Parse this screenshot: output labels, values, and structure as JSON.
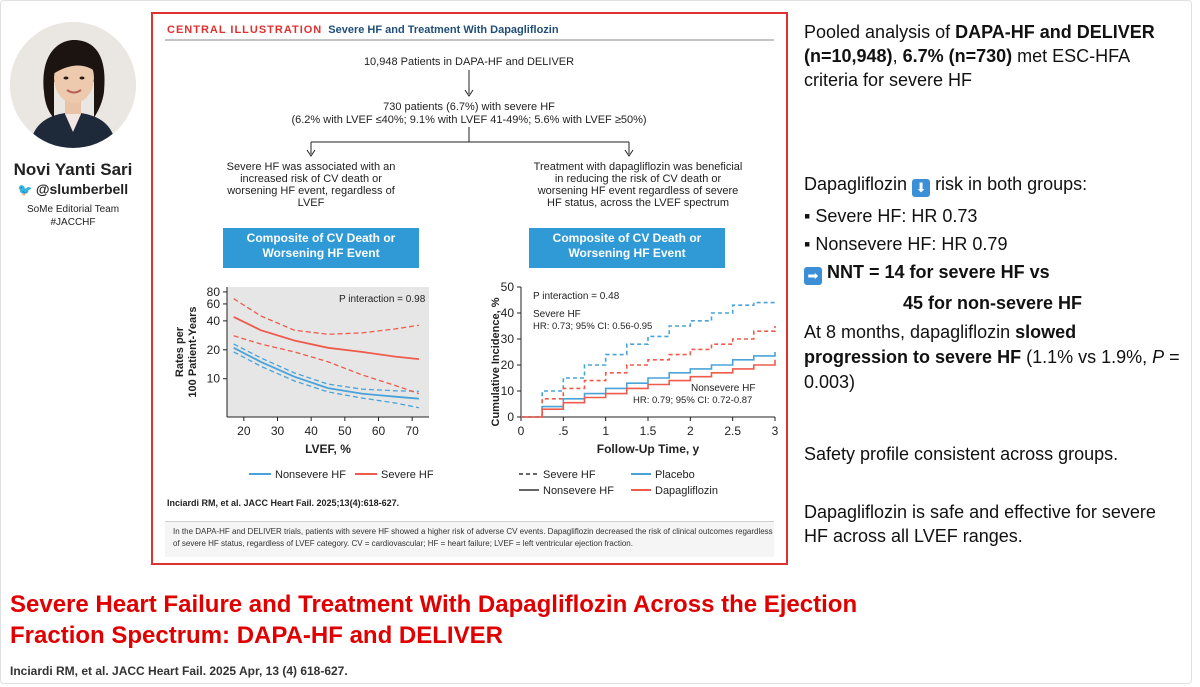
{
  "author": {
    "name": "Novi Yanti Sari",
    "handle": "@slumberbell",
    "team": "SoMe Editorial Team",
    "hashtag": "#JACCHF"
  },
  "illustration": {
    "label": "CENTRAL ILLUSTRATION",
    "title": "Severe HF and Treatment With Dapagliflozin",
    "flow": {
      "top": "10,948 Patients in DAPA-HF and DELIVER",
      "mid_line1": "730 patients (6.7%) with severe HF",
      "mid_line2": "(6.2% with LVEF ≤40%; 9.1% with LVEF 41-49%; 5.6% with LVEF ≥50%)",
      "left_text": "Severe HF was associated with an increased risk of CV death or worsening HF event, regardless of LVEF",
      "right_text": "Treatment with dapagliflozin was beneficial in reducing the risk of CV death or worsening HF event regardless of severe HF status, across the LVEF spectrum"
    },
    "citation": "Inciardi RM, et al. JACC Heart Fail. 2025;13(4):618-627.",
    "footnote": "In the DAPA-HF and DELIVER trials, patients with severe HF showed a higher risk of adverse CV events. Dapagliflozin decreased the risk of clinical outcomes regardless of severe HF status, regardless of LVEF category. CV = cardiovascular; HF = heart failure; LVEF = left ventricular ejection fraction."
  },
  "chart_data": [
    {
      "type": "line",
      "title": "Composite of CV Death or Worsening HF Event",
      "xlabel": "LVEF, %",
      "ylabel": "Rates per 100 Patient-Years",
      "xlim": [
        15,
        75
      ],
      "ylim": [
        4,
        90
      ],
      "yscale": "log",
      "xticks": [
        20,
        30,
        40,
        50,
        60,
        70
      ],
      "yticks": [
        10,
        20,
        40,
        60,
        80
      ],
      "annotation": "P interaction = 0.98",
      "annotation_sub": "interaction",
      "series": [
        {
          "name": "Nonsevere HF",
          "color": "#4aa3d8",
          "x": [
            17,
            25,
            35,
            45,
            55,
            65,
            72
          ],
          "y": [
            21,
            15,
            10.5,
            8,
            7,
            6.5,
            6.2
          ],
          "lower": [
            19,
            13.5,
            9.5,
            7.3,
            6.3,
            5.6,
            5.0
          ],
          "upper": [
            23,
            16.5,
            11.5,
            8.8,
            7.8,
            7.5,
            7.4
          ]
        },
        {
          "name": "Severe HF",
          "color": "#ef5b4a",
          "x": [
            17,
            25,
            35,
            45,
            55,
            65,
            72
          ],
          "y": [
            44,
            32,
            25,
            21,
            19,
            17,
            16
          ],
          "lower": [
            28,
            23,
            19,
            15,
            11,
            8.5,
            7
          ],
          "upper": [
            68,
            45,
            32,
            29,
            30,
            33,
            36
          ]
        }
      ],
      "legend": [
        "Nonsevere HF",
        "Severe HF"
      ]
    },
    {
      "type": "line",
      "title": "Composite of CV Death or Worsening HF Event",
      "xlabel": "Follow-Up Time, y",
      "ylabel": "Cumulative Incidence, %",
      "xlim": [
        0,
        3
      ],
      "ylim": [
        0,
        50
      ],
      "xticks": [
        0,
        0.5,
        1,
        1.5,
        2,
        2.5,
        3
      ],
      "xticklabels": [
        "0",
        ".5",
        "1",
        "1.5",
        "2",
        "2.5",
        "3"
      ],
      "yticks": [
        0,
        10,
        20,
        30,
        40,
        50
      ],
      "annotation": "P interaction = 0.48",
      "annotation_sub": "interaction",
      "severe_label": "Severe HF",
      "severe_hr": "HR: 0.73; 95% CI: 0.56-0.95",
      "nonsevere_label": "Nonsevere HF",
      "nonsevere_hr": "HR: 0.79; 95% CI: 0.72-0.87",
      "series": [
        {
          "name": "Severe HF - Placebo",
          "color": "#4aa3d8",
          "dash": true,
          "x": [
            0,
            0.25,
            0.5,
            0.75,
            1,
            1.25,
            1.5,
            1.75,
            2,
            2.25,
            2.5,
            2.75,
            3
          ],
          "y": [
            0,
            10,
            15,
            20,
            24,
            28,
            31,
            35,
            37,
            40,
            43,
            44,
            44
          ]
        },
        {
          "name": "Severe HF - Dapagliflozin",
          "color": "#ef5b4a",
          "dash": true,
          "x": [
            0,
            0.25,
            0.5,
            0.75,
            1,
            1.25,
            1.5,
            1.75,
            2,
            2.25,
            2.5,
            2.75,
            3
          ],
          "y": [
            0,
            7,
            11,
            14,
            17,
            20,
            22,
            24,
            26,
            28,
            30,
            33,
            35
          ]
        },
        {
          "name": "Nonsevere HF - Placebo",
          "color": "#4aa3d8",
          "dash": false,
          "x": [
            0,
            0.25,
            0.5,
            0.75,
            1,
            1.25,
            1.5,
            1.75,
            2,
            2.25,
            2.5,
            2.75,
            3
          ],
          "y": [
            0,
            4,
            7,
            9,
            11,
            13,
            15,
            17,
            18.5,
            20,
            22,
            23.5,
            25
          ]
        },
        {
          "name": "Nonsevere HF - Dapagliflozin",
          "color": "#ef5b4a",
          "dash": false,
          "x": [
            0,
            0.25,
            0.5,
            0.75,
            1,
            1.25,
            1.5,
            1.75,
            2,
            2.25,
            2.5,
            2.75,
            3
          ],
          "y": [
            0,
            3,
            5.5,
            7.5,
            9,
            11,
            12.5,
            14,
            15.5,
            17,
            18.5,
            20,
            22
          ]
        }
      ],
      "legend": [
        "Severe HF",
        "Nonsevere HF",
        "Placebo",
        "Dapagliflozin"
      ]
    }
  ],
  "right": {
    "p1_a": "Pooled analysis of ",
    "p1_b": "DAPA-HF and DELIVER (n=10,948)",
    "p1_c": ", ",
    "p1_d": "6.7% (n=730)",
    "p1_e": " met ESC-HFA criteria for severe HF",
    "p2_a": "Dapagliflozin ",
    "p2_icon": "down-arrow-icon",
    "p2_b": " risk in both groups:",
    "bullet1": "▪ Severe HF: HR 0.73",
    "bullet2": "▪ Nonsevere HF: HR 0.79",
    "nnt_icon": "right-arrow-icon",
    "nnt1": "NNT = 14 for severe HF vs",
    "nnt2": "45 for non-severe HF",
    "p3_a": "At 8 months, dapagliflozin ",
    "p3_b": "slowed progression to severe HF",
    "p3_c": " (1.1% vs 1.9%, ",
    "p3_d": "P",
    "p3_e": " = 0.003)",
    "p4": "Safety profile consistent across groups.",
    "p5": "Dapagliflozin is safe and effective for severe HF across all LVEF ranges."
  },
  "title": "Severe Heart Failure and Treatment With Dapagliflozin Across the Ejection Fraction Spectrum: DAPA-HF and DELIVER",
  "reference": "Inciardi RM, et al. JACC Heart Fail. 2025 Apr, 13 (4) 618-627.",
  "colors": {
    "title_red": "#e00000",
    "frame_red": "#e03131",
    "banner_blue": "#2f9ad6",
    "placebo_blue": "#4aa3d8",
    "dapa_red": "#ef5b4a"
  }
}
